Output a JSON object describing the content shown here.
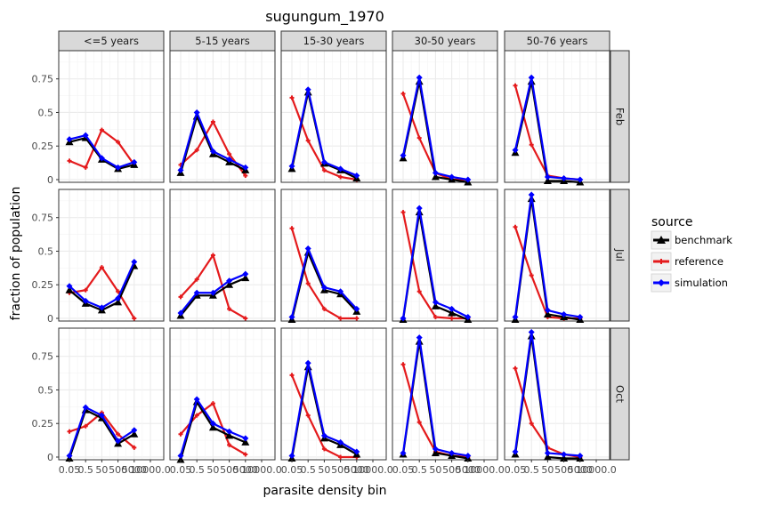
{
  "chart_data": {
    "type": "line",
    "title": "sugungum_1970",
    "xlabel": "parasite density bin",
    "ylabel": "fraction of population",
    "x_tick_labels": [
      "0.05",
      "0.5",
      "50",
      "500",
      "5000",
      "10000.0"
    ],
    "y_ticks": [
      0,
      0.25,
      0.5,
      0.75
    ],
    "ylim": [
      -0.02,
      0.96
    ],
    "col_facets": [
      "<=5 years",
      "5-15 years",
      "15-30 years",
      "30-50 years",
      "50-76 years"
    ],
    "row_facets": [
      "Feb",
      "Jul",
      "Oct"
    ],
    "legend": {
      "title": "source",
      "position": "right",
      "entries": [
        "benchmark",
        "reference",
        "simulation"
      ]
    },
    "colors": {
      "benchmark": "#000000",
      "reference": "#e41a1c",
      "simulation": "#0000ff"
    },
    "panels": {
      "Feb": [
        {
          "benchmark": [
            0.28,
            0.31,
            0.15,
            0.08,
            0.11
          ],
          "reference": [
            0.14,
            0.09,
            0.37,
            0.28,
            0.11
          ],
          "simulation": [
            0.3,
            0.33,
            0.16,
            0.09,
            0.13
          ]
        },
        {
          "benchmark": [
            0.05,
            0.47,
            0.19,
            0.13,
            0.07
          ],
          "reference": [
            0.11,
            0.22,
            0.43,
            0.19,
            0.03
          ],
          "simulation": [
            0.07,
            0.5,
            0.21,
            0.15,
            0.09
          ]
        },
        {
          "benchmark": [
            0.08,
            0.65,
            0.12,
            0.07,
            0.01
          ],
          "reference": [
            0.61,
            0.29,
            0.07,
            0.02,
            0.0
          ],
          "simulation": [
            0.1,
            0.67,
            0.13,
            0.08,
            0.03
          ]
        },
        {
          "benchmark": [
            0.16,
            0.73,
            0.02,
            0.0,
            -0.02
          ],
          "reference": [
            0.64,
            0.31,
            0.05,
            0.0,
            0.0
          ],
          "simulation": [
            0.18,
            0.76,
            0.05,
            0.02,
            0.0
          ]
        },
        {
          "benchmark": [
            0.2,
            0.73,
            -0.01,
            -0.01,
            -0.02
          ],
          "reference": [
            0.7,
            0.26,
            0.03,
            0.01,
            0.0
          ],
          "simulation": [
            0.22,
            0.76,
            0.02,
            0.01,
            0.0
          ]
        }
      ],
      "Jul": [
        {
          "benchmark": [
            0.21,
            0.11,
            0.06,
            0.12,
            0.39
          ],
          "reference": [
            0.19,
            0.21,
            0.38,
            0.2,
            0.0
          ],
          "simulation": [
            0.24,
            0.13,
            0.08,
            0.15,
            0.42
          ]
        },
        {
          "benchmark": [
            0.02,
            0.17,
            0.17,
            0.25,
            0.3
          ],
          "reference": [
            0.16,
            0.29,
            0.47,
            0.07,
            0.0
          ],
          "simulation": [
            0.04,
            0.19,
            0.19,
            0.28,
            0.33
          ]
        },
        {
          "benchmark": [
            -0.01,
            0.49,
            0.21,
            0.18,
            0.05
          ],
          "reference": [
            0.67,
            0.26,
            0.07,
            0.0,
            0.0
          ],
          "simulation": [
            0.01,
            0.52,
            0.23,
            0.2,
            0.07
          ]
        },
        {
          "benchmark": [
            -0.01,
            0.79,
            0.09,
            0.04,
            -0.01
          ],
          "reference": [
            0.79,
            0.2,
            0.01,
            0.0,
            0.0
          ],
          "simulation": [
            0.0,
            0.82,
            0.12,
            0.07,
            0.01
          ]
        },
        {
          "benchmark": [
            -0.01,
            0.89,
            0.03,
            0.01,
            -0.01
          ],
          "reference": [
            0.68,
            0.32,
            0.01,
            0.0,
            0.0
          ],
          "simulation": [
            0.01,
            0.92,
            0.06,
            0.03,
            0.01
          ]
        }
      ],
      "Oct": [
        {
          "benchmark": [
            -0.01,
            0.35,
            0.29,
            0.1,
            0.17
          ],
          "reference": [
            0.19,
            0.23,
            0.33,
            0.17,
            0.07
          ],
          "simulation": [
            0.01,
            0.37,
            0.31,
            0.12,
            0.2
          ]
        },
        {
          "benchmark": [
            -0.02,
            0.41,
            0.22,
            0.16,
            0.11
          ],
          "reference": [
            0.17,
            0.31,
            0.4,
            0.09,
            0.02
          ],
          "simulation": [
            0.01,
            0.43,
            0.25,
            0.19,
            0.14
          ]
        },
        {
          "benchmark": [
            -0.01,
            0.67,
            0.14,
            0.09,
            0.02
          ],
          "reference": [
            0.61,
            0.31,
            0.06,
            0.0,
            0.0
          ],
          "simulation": [
            0.01,
            0.7,
            0.16,
            0.11,
            0.04
          ]
        },
        {
          "benchmark": [
            0.02,
            0.86,
            0.03,
            0.01,
            -0.01
          ],
          "reference": [
            0.69,
            0.26,
            0.04,
            0.01,
            0.0
          ],
          "simulation": [
            0.03,
            0.89,
            0.06,
            0.03,
            0.01
          ]
        },
        {
          "benchmark": [
            0.02,
            0.9,
            0.0,
            -0.01,
            -0.01
          ],
          "reference": [
            0.66,
            0.25,
            0.07,
            0.02,
            0.0
          ],
          "simulation": [
            0.04,
            0.93,
            0.03,
            0.02,
            0.01
          ]
        }
      ]
    }
  }
}
